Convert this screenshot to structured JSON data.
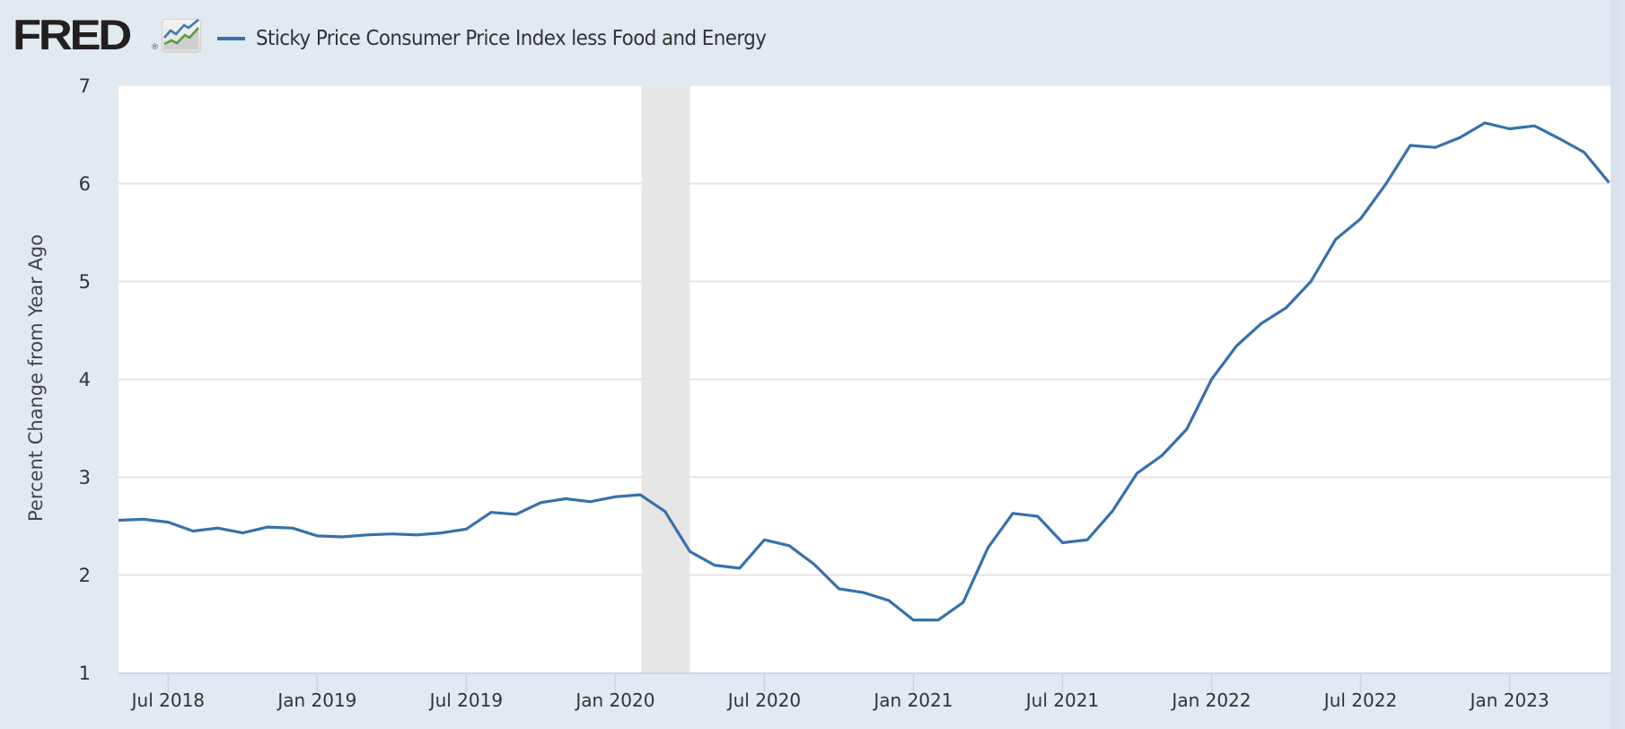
{
  "header": {
    "logo_text": "FRED",
    "logo_registered": "®",
    "logo_icon": "line-chart-icon"
  },
  "colors": {
    "series": "#3671ab",
    "recession": "#e6e6e6",
    "background": "#e1e9f1",
    "plot_background": "#ffffff",
    "gridline": "#e4e4e4",
    "axis": "#c6d5ea",
    "text": "#333333"
  },
  "chart_data": {
    "type": "line",
    "title": "",
    "legend": [
      {
        "name": "Sticky Price Consumer Price Index less Food and Energy",
        "color": "#3671ab"
      }
    ],
    "legend_position": "top-left",
    "xlabel": "",
    "ylabel": "Percent Change from Year Ago",
    "ylim": [
      1,
      7
    ],
    "yticks": [
      1,
      2,
      3,
      4,
      5,
      6,
      7
    ],
    "grid": true,
    "x_start": "2018-05",
    "x_frequency": "monthly",
    "xticks": [
      {
        "label": "Jul 2018",
        "index": 2
      },
      {
        "label": "Jan 2019",
        "index": 8
      },
      {
        "label": "Jul 2019",
        "index": 14
      },
      {
        "label": "Jan 2020",
        "index": 20
      },
      {
        "label": "Jul 2020",
        "index": 26
      },
      {
        "label": "Jan 2021",
        "index": 32
      },
      {
        "label": "Jul 2021",
        "index": 38
      },
      {
        "label": "Jan 2022",
        "index": 44
      },
      {
        "label": "Jul 2022",
        "index": 50
      },
      {
        "label": "Jan 2023",
        "index": 56
      }
    ],
    "recessions": [
      {
        "start_index": 21.05,
        "end_index": 23.0,
        "label": "2020-02 to 2020-04"
      }
    ],
    "series": [
      {
        "name": "Sticky Price Consumer Price Index less Food and Energy",
        "values": [
          2.56,
          2.57,
          2.54,
          2.45,
          2.48,
          2.43,
          2.49,
          2.48,
          2.4,
          2.39,
          2.41,
          2.42,
          2.41,
          2.43,
          2.47,
          2.64,
          2.62,
          2.74,
          2.78,
          2.75,
          2.8,
          2.82,
          2.65,
          2.24,
          2.1,
          2.07,
          2.36,
          2.3,
          2.11,
          1.86,
          1.82,
          1.74,
          1.54,
          1.54,
          1.72,
          2.28,
          2.63,
          2.6,
          2.33,
          2.36,
          2.65,
          3.04,
          3.22,
          3.49,
          4.0,
          4.34,
          4.57,
          4.73,
          5.0,
          5.43,
          5.64,
          5.99,
          6.39,
          6.37,
          6.47,
          6.62,
          6.56,
          6.59,
          6.46,
          6.32,
          6.01
        ]
      }
    ]
  }
}
